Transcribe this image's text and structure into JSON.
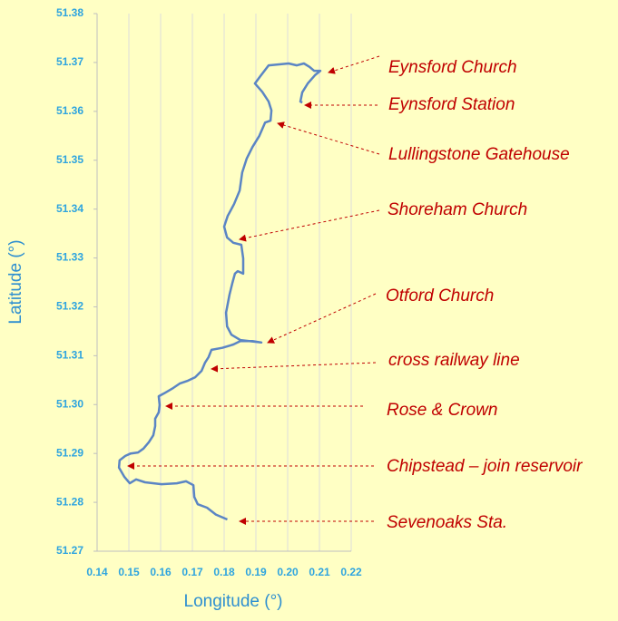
{
  "chart_data": {
    "type": "line",
    "xlabel": "Longitude (°)",
    "ylabel": "Latitude (°)",
    "color": "#5b85c4",
    "xlim": [
      0.14,
      0.22
    ],
    "xticks": [
      0.14,
      0.15,
      0.16,
      0.17,
      0.18,
      0.19,
      {
        "value": 0.2,
        "label": "0.20"
      },
      0.21,
      0.22
    ],
    "ylim": [
      51.27,
      51.38
    ],
    "yticks": [
      51.27,
      51.28,
      51.29,
      {
        "value": 51.3,
        "label": "51.30"
      },
      51.31,
      51.32,
      51.33,
      51.34,
      51.35,
      51.36,
      51.37,
      51.38
    ],
    "grid": "x",
    "x": [
      0.181,
      0.1774,
      0.1746,
      0.1717,
      0.1706,
      0.1703,
      0.168,
      0.1651,
      0.1603,
      0.1551,
      0.1523,
      0.1503,
      0.1486,
      0.1469,
      0.1471,
      0.1489,
      0.1506,
      0.1529,
      0.1546,
      0.1563,
      0.1577,
      0.1583,
      0.1583,
      0.1594,
      0.1597,
      0.1594,
      0.1611,
      0.164,
      0.166,
      0.1686,
      0.1709,
      0.1729,
      0.174,
      0.1751,
      0.176,
      0.1794,
      0.1829,
      0.1851,
      0.1889,
      0.1917,
      0.1851,
      0.1823,
      0.1809,
      0.1806,
      0.1817,
      0.1826,
      0.1834,
      0.1843,
      0.186,
      0.186,
      0.1854,
      0.1829,
      0.1809,
      0.18,
      0.1811,
      0.1831,
      0.1849,
      0.1857,
      0.1871,
      0.1889,
      0.1911,
      0.1929,
      0.1946,
      0.1949,
      0.194,
      0.192,
      0.1897,
      0.1914,
      0.194,
      0.2003,
      0.2029,
      0.2051,
      0.2069,
      0.2083,
      0.2103,
      0.2086,
      0.2063,
      0.2046,
      0.204,
      0.2046
    ],
    "values": [
      51.2765,
      51.2775,
      51.2789,
      51.2796,
      51.2811,
      51.2835,
      51.2843,
      51.2839,
      51.2837,
      51.2841,
      51.2847,
      51.2839,
      51.2852,
      51.2871,
      51.2886,
      51.2895,
      51.29,
      51.2902,
      51.291,
      51.2923,
      51.2937,
      51.2956,
      51.2971,
      51.2984,
      51.2999,
      51.3017,
      51.3023,
      51.3034,
      51.3043,
      51.3049,
      51.3056,
      51.3069,
      51.3086,
      51.3097,
      51.3112,
      51.3116,
      51.3123,
      51.313,
      51.313,
      51.3127,
      51.3132,
      51.3143,
      51.316,
      51.3188,
      51.3225,
      51.3249,
      51.3268,
      51.3273,
      51.3268,
      51.3299,
      51.3327,
      51.3331,
      51.3342,
      51.3364,
      51.3386,
      51.341,
      51.3438,
      51.3475,
      51.3503,
      51.3527,
      51.355,
      51.3577,
      51.3581,
      51.3602,
      51.362,
      51.364,
      51.3657,
      51.3672,
      51.3694,
      51.3698,
      51.3694,
      51.3698,
      51.3691,
      51.3683,
      51.3683,
      51.3674,
      51.3657,
      51.3639,
      51.362,
      51.3618
    ],
    "annotations": [
      "Eynsford Church",
      "Eynsford Station",
      "Lullingstone Gatehouse",
      "Shoreham Church",
      "Otford Church",
      "cross railway line",
      "Rose & Crown",
      "Chipstead – join reservoir",
      "Sevenoaks Sta."
    ]
  }
}
